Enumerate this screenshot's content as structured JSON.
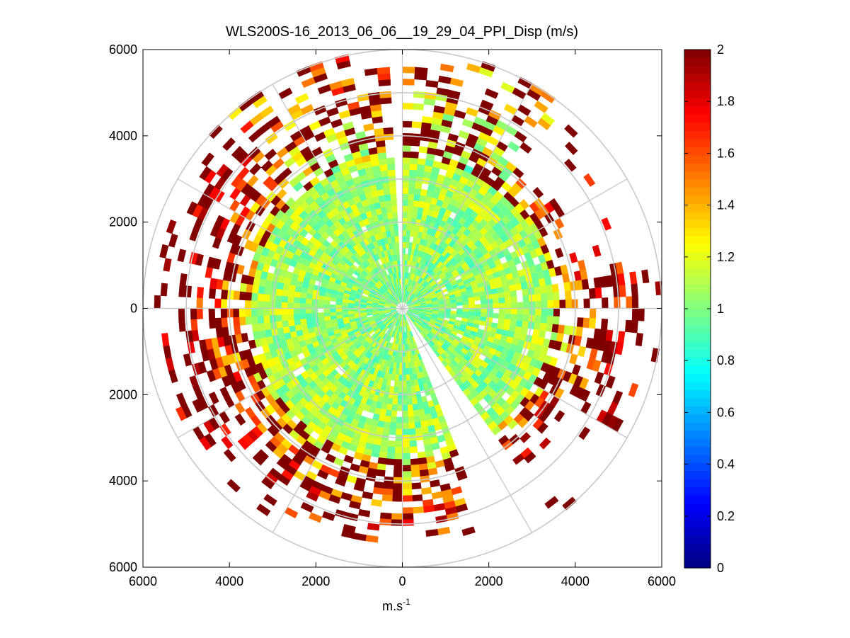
{
  "chart_data": {
    "type": "heatmap",
    "subtype": "polar-ppi",
    "title": "WLS200S-16_2013_06_06__19_29_04_PPI_Disp (m/s)",
    "xlabel": "m.s",
    "xlabel_superscript": "-1",
    "xlim": [
      -6000,
      6000
    ],
    "ylim": [
      -6000,
      6000
    ],
    "x_ticks": [
      {
        "value": -6000,
        "label": "6000"
      },
      {
        "value": -4000,
        "label": "4000"
      },
      {
        "value": -2000,
        "label": "2000"
      },
      {
        "value": 0,
        "label": "0"
      },
      {
        "value": 2000,
        "label": "2000"
      },
      {
        "value": 4000,
        "label": "4000"
      },
      {
        "value": 6000,
        "label": "6000"
      }
    ],
    "y_ticks": [
      {
        "value": 6000,
        "label": "6000"
      },
      {
        "value": 4000,
        "label": "4000"
      },
      {
        "value": 2000,
        "label": "2000"
      },
      {
        "value": 0,
        "label": "0"
      },
      {
        "value": -2000,
        "label": "2000"
      },
      {
        "value": -4000,
        "label": "4000"
      },
      {
        "value": -6000,
        "label": "6000"
      }
    ],
    "grid_ring_radii_m": [
      1000,
      2000,
      3000,
      4000,
      5000,
      6000
    ],
    "grid_spoke_step_deg": 30,
    "colorbar": {
      "colormap": "jet",
      "clim": [
        0,
        2
      ],
      "ticks": [
        {
          "value": 0,
          "label": "0"
        },
        {
          "value": 0.2,
          "label": "0.2"
        },
        {
          "value": 0.4,
          "label": "0.4"
        },
        {
          "value": 0.6,
          "label": "0.6"
        },
        {
          "value": 0.8,
          "label": "0.8"
        },
        {
          "value": 1,
          "label": "1"
        },
        {
          "value": 1.2,
          "label": "1.2"
        },
        {
          "value": 1.4,
          "label": "1.4"
        },
        {
          "value": 1.6,
          "label": "1.6"
        },
        {
          "value": 1.8,
          "label": "1.8"
        },
        {
          "value": 2,
          "label": "2"
        }
      ]
    },
    "data_summary": {
      "range_max_m": 6000,
      "core_radius_m": 3500,
      "core_value": 1.0,
      "edge_value": 2.0,
      "missing_wedges_deg": [
        [
          -2,
          1
        ],
        [
          145,
          160
        ]
      ],
      "azimuth_sector_values": [
        {
          "az_deg": 15,
          "max_range_m": 5900,
          "value": 1.3
        },
        {
          "az_deg": 60,
          "max_range_m": 4200,
          "value": 1.6
        },
        {
          "az_deg": 100,
          "max_range_m": 5600,
          "value": 1.8
        },
        {
          "az_deg": 135,
          "max_range_m": 4500,
          "value": 1.9
        },
        {
          "az_deg": 185,
          "max_range_m": 5400,
          "value": 1.7
        },
        {
          "az_deg": 240,
          "max_range_m": 5600,
          "value": 1.9
        },
        {
          "az_deg": 290,
          "max_range_m": 5600,
          "value": 1.9
        },
        {
          "az_deg": 335,
          "max_range_m": 5900,
          "value": 1.5
        }
      ]
    }
  }
}
